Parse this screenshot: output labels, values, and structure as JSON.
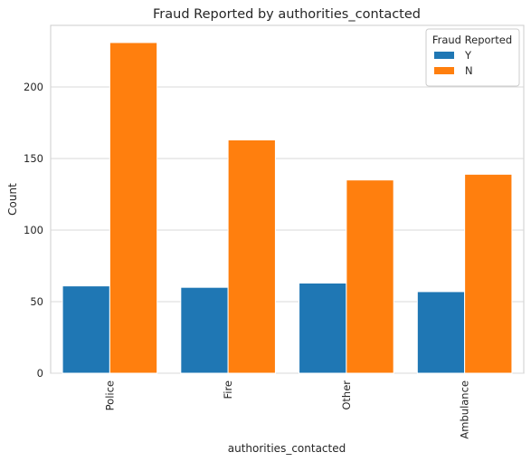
{
  "chart_data": {
    "type": "bar",
    "title": "Fraud Reported by authorities_contacted",
    "xlabel": "authorities_contacted",
    "ylabel": "Count",
    "categories": [
      "Police",
      "Fire",
      "Other",
      "Ambulance"
    ],
    "series": [
      {
        "name": "Y",
        "color": "#1f77b4",
        "values": [
          61,
          60,
          63,
          57
        ]
      },
      {
        "name": "N",
        "color": "#ff7f0e",
        "values": [
          231,
          163,
          135,
          139
        ]
      }
    ],
    "ylim": [
      0,
      243
    ],
    "yticks": [
      0,
      50,
      100,
      150,
      200
    ],
    "grid": true,
    "legend": {
      "title": "Fraud Reported",
      "placement": "top-right"
    }
  }
}
